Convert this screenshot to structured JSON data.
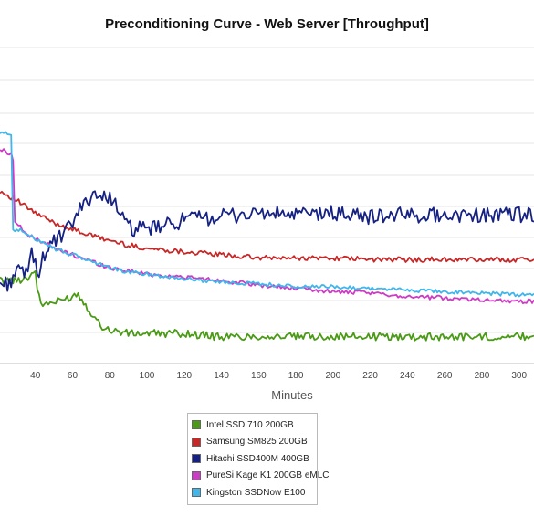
{
  "chart_data": {
    "type": "line",
    "title": "Preconditioning Curve - Web Server [Throughput]",
    "xlabel": "Minutes",
    "ylabel": "",
    "xlim": [
      21,
      308
    ],
    "ylim": [
      0,
      1
    ],
    "x_ticks": [
      40,
      60,
      80,
      100,
      120,
      140,
      160,
      180,
      200,
      220,
      240,
      260,
      280,
      300
    ],
    "y_tick_labels_visible": false,
    "grid": true,
    "legend_position": "bottom-center",
    "series": [
      {
        "name": "Intel SSD 710 200GB",
        "color": "#4a9a16",
        "x": [
          21,
          30,
          36,
          40,
          41,
          43,
          46,
          50,
          55,
          60,
          63,
          66,
          70,
          75,
          80,
          85,
          90,
          100,
          120,
          140,
          160,
          180,
          200,
          220,
          240,
          260,
          280,
          300,
          308
        ],
        "values": [
          0.26,
          0.26,
          0.27,
          0.29,
          0.24,
          0.18,
          0.19,
          0.19,
          0.2,
          0.21,
          0.22,
          0.19,
          0.16,
          0.12,
          0.104,
          0.1,
          0.094,
          0.094,
          0.094,
          0.083,
          0.085,
          0.084,
          0.085,
          0.084,
          0.084,
          0.084,
          0.084,
          0.085,
          0.085
        ]
      },
      {
        "name": "Samsung SM825 200GB",
        "color": "#c62828",
        "x": [
          21,
          30,
          40,
          50,
          60,
          70,
          80,
          90,
          100,
          120,
          140,
          160,
          180,
          200,
          220,
          240,
          260,
          280,
          300,
          308
        ],
        "values": [
          0.54,
          0.51,
          0.47,
          0.44,
          0.42,
          0.4,
          0.385,
          0.37,
          0.36,
          0.35,
          0.34,
          0.33,
          0.33,
          0.33,
          0.325,
          0.325,
          0.325,
          0.325,
          0.325,
          0.325
        ]
      },
      {
        "name": "Hitachi SSD400M 400GB",
        "color": "#152283",
        "x": [
          21,
          26,
          30,
          34,
          38,
          42,
          46,
          50,
          55,
          60,
          64,
          68,
          72,
          76,
          80,
          84,
          88,
          92,
          100,
          110,
          120,
          140,
          160,
          180,
          200,
          220,
          240,
          260,
          280,
          300,
          308
        ],
        "values": [
          0.25,
          0.25,
          0.3,
          0.27,
          0.34,
          0.29,
          0.36,
          0.38,
          0.4,
          0.44,
          0.48,
          0.51,
          0.54,
          0.51,
          0.53,
          0.49,
          0.44,
          0.42,
          0.42,
          0.43,
          0.45,
          0.46,
          0.47,
          0.465,
          0.47,
          0.46,
          0.465,
          0.465,
          0.465,
          0.465,
          0.465
        ]
      },
      {
        "name": "PureSi Kage K1 200GB eMLC",
        "color": "#cc3cc4",
        "x": [
          21,
          27,
          28,
          29,
          33,
          36,
          40,
          45,
          50,
          60,
          70,
          80,
          90,
          100,
          120,
          140,
          160,
          180,
          200,
          220,
          240,
          260,
          280,
          300,
          308
        ],
        "values": [
          0.67,
          0.655,
          0.63,
          0.45,
          0.42,
          0.4,
          0.39,
          0.38,
          0.36,
          0.34,
          0.32,
          0.3,
          0.29,
          0.28,
          0.27,
          0.26,
          0.245,
          0.235,
          0.225,
          0.22,
          0.21,
          0.205,
          0.2,
          0.195,
          0.195
        ]
      },
      {
        "name": "Kingston SSDNow E100",
        "color": "#40b6ea",
        "x": [
          21,
          27,
          27.5,
          28,
          33,
          36,
          40,
          45,
          50,
          60,
          70,
          80,
          90,
          100,
          120,
          140,
          160,
          180,
          200,
          220,
          240,
          260,
          280,
          300,
          308
        ],
        "values": [
          0.72,
          0.72,
          0.6,
          0.42,
          0.415,
          0.4,
          0.39,
          0.38,
          0.36,
          0.34,
          0.32,
          0.3,
          0.285,
          0.28,
          0.265,
          0.255,
          0.25,
          0.24,
          0.24,
          0.235,
          0.23,
          0.225,
          0.22,
          0.215,
          0.215
        ]
      }
    ]
  }
}
